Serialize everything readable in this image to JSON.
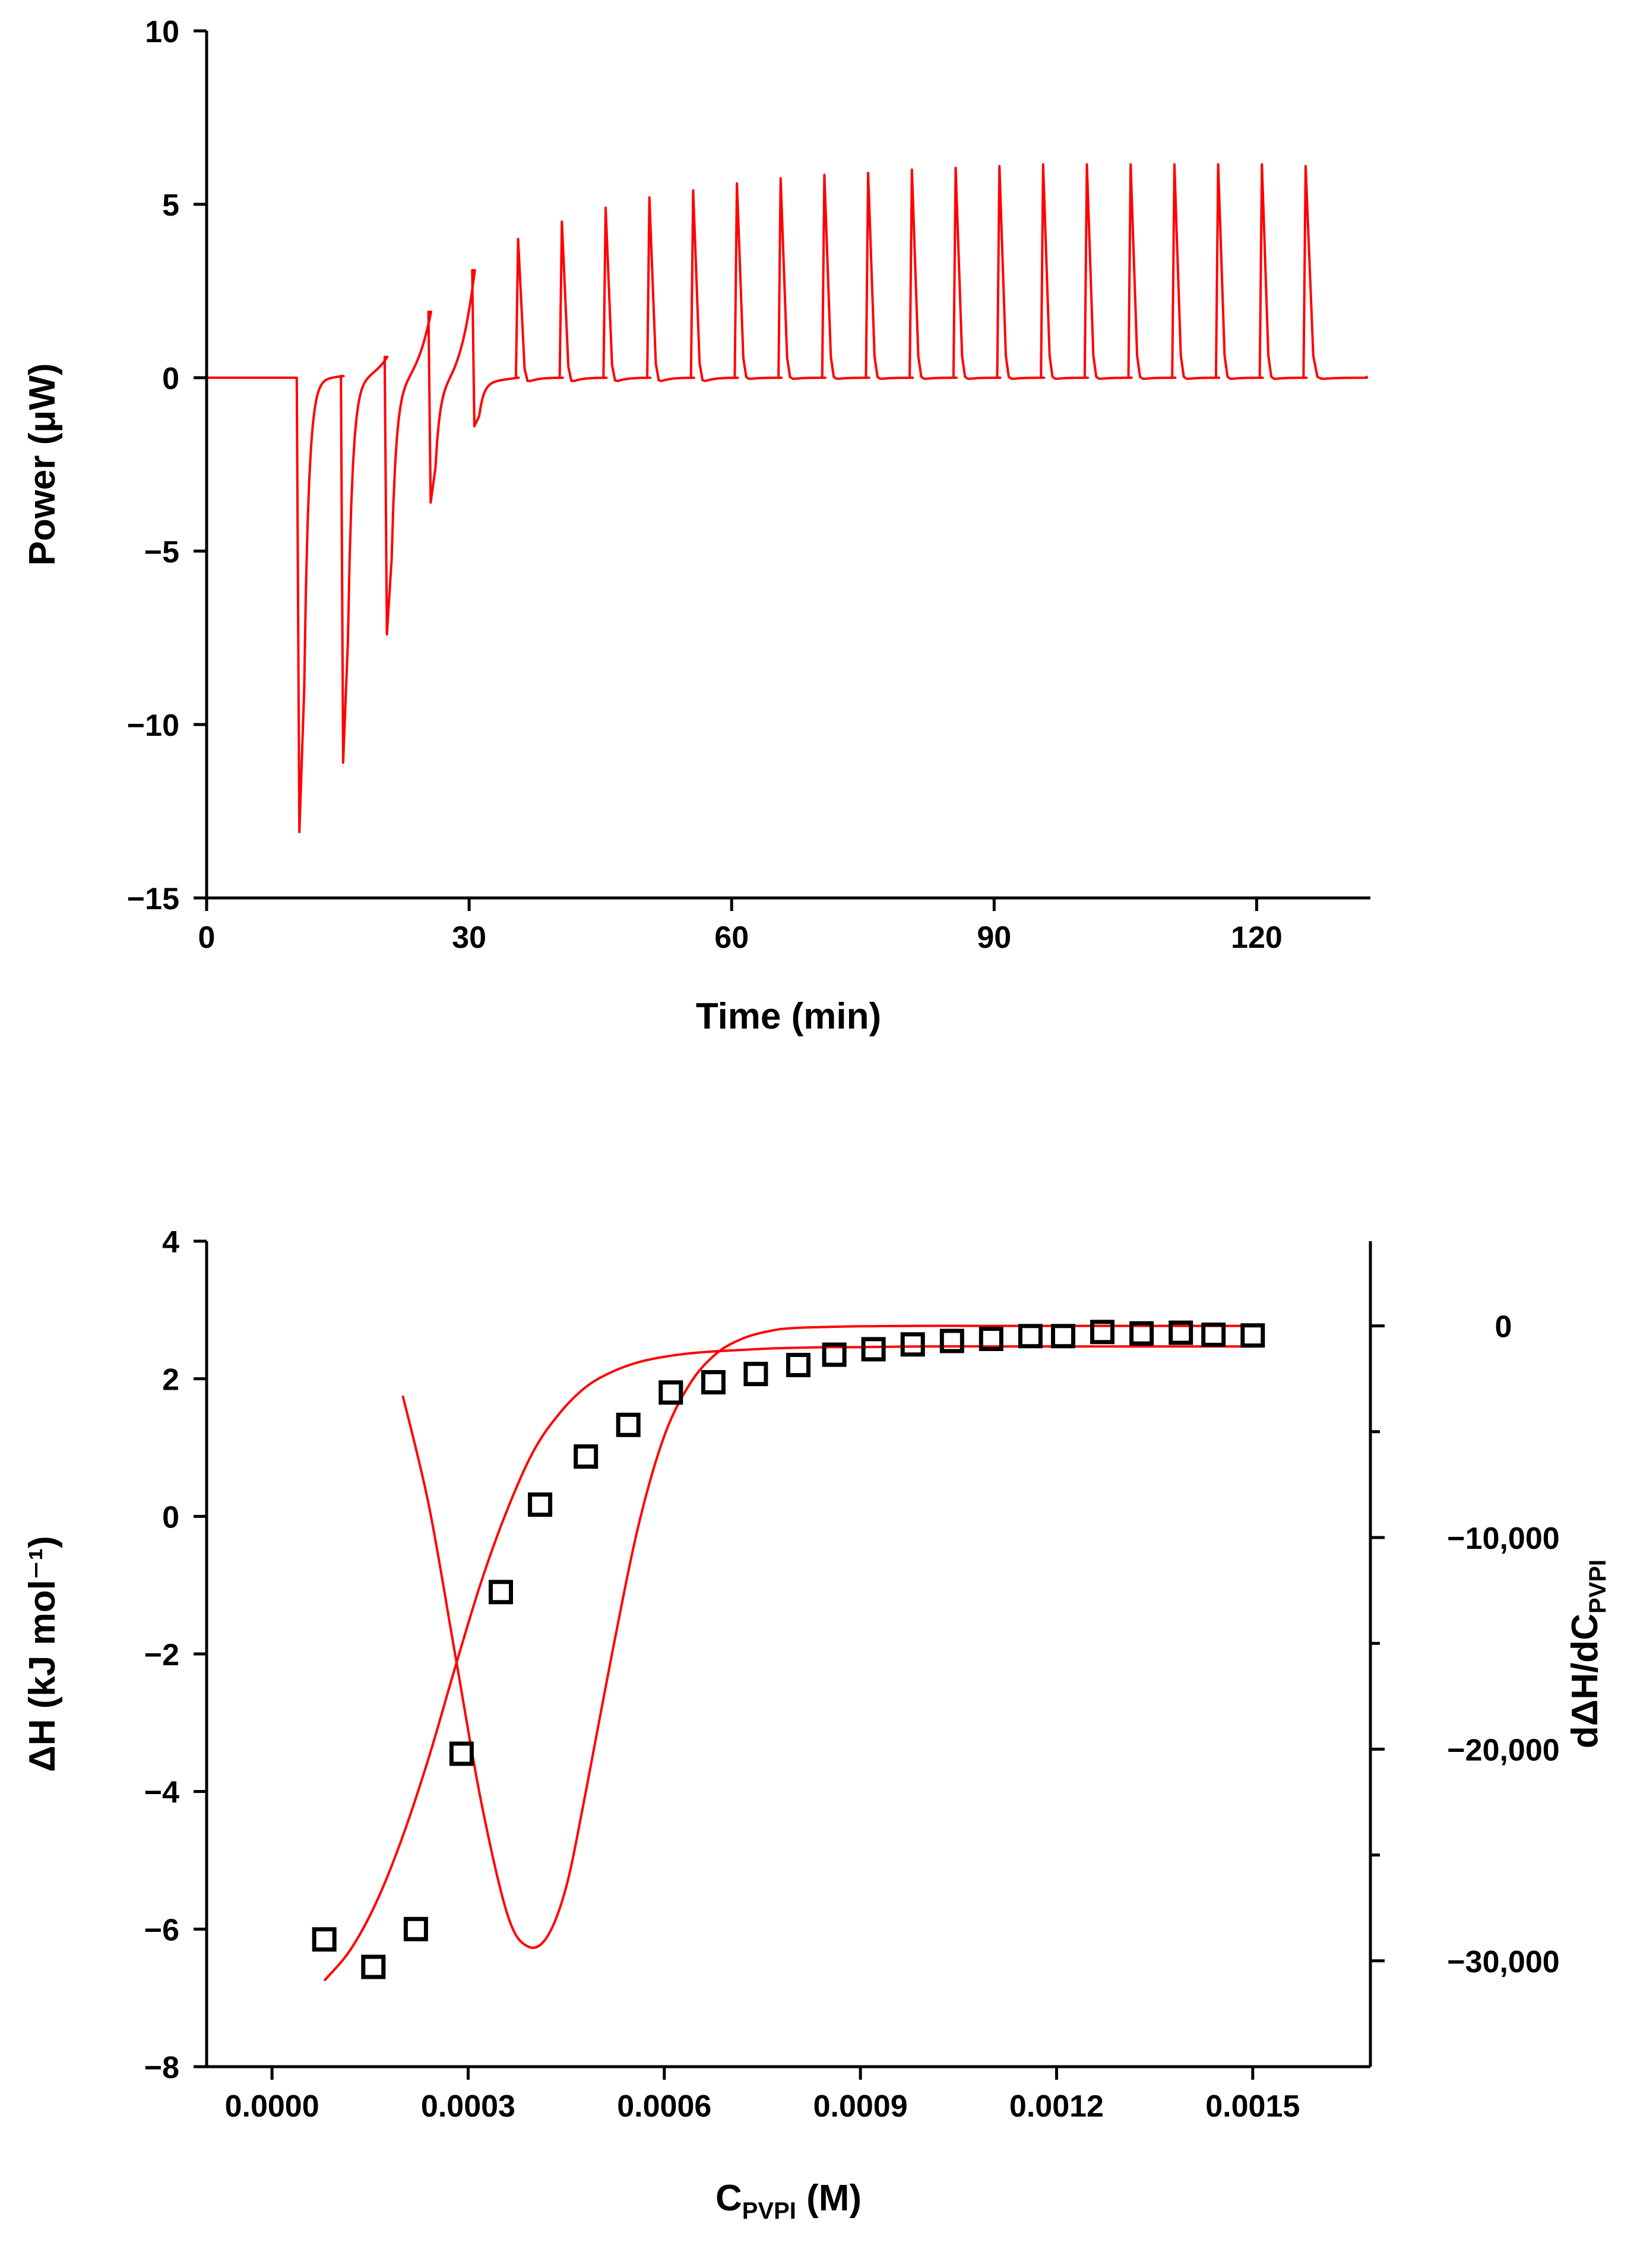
{
  "colors": {
    "curve": "#ff0000",
    "axis": "#000000",
    "marker": "#000000",
    "background": "#ffffff"
  },
  "chart_data": [
    {
      "id": "thermogram",
      "type": "line",
      "title": "",
      "xlabel": "Time (min)",
      "ylabel": "Power (μW)",
      "xlim": [
        0,
        133
      ],
      "ylim": [
        -15,
        10
      ],
      "xticks": [
        0,
        30,
        60,
        90,
        120
      ],
      "xtick_labels": [
        "0",
        "30",
        "60",
        "90",
        "120"
      ],
      "yticks": [
        10,
        5,
        0,
        -5,
        -10,
        -15
      ],
      "ytick_labels": [
        "10",
        "5",
        "0",
        "−5",
        "−10",
        "−15"
      ],
      "grid": false,
      "baseline": 0,
      "injections": [
        {
          "t": 10.6,
          "peak": -13.1,
          "pre": 0.0
        },
        {
          "t": 15.6,
          "peak": -11.1,
          "pre": 0.05
        },
        {
          "t": 20.6,
          "peak": -7.4,
          "pre": 0.6
        },
        {
          "t": 25.6,
          "peak": -3.6,
          "pre": 1.9
        },
        {
          "t": 30.6,
          "peak": -1.4,
          "pre": 3.1
        },
        {
          "t": 35.6,
          "peak": 4.0,
          "pre": 0
        },
        {
          "t": 40.6,
          "peak": 4.5,
          "pre": 0
        },
        {
          "t": 45.6,
          "peak": 4.9,
          "pre": 0
        },
        {
          "t": 50.6,
          "peak": 5.2,
          "pre": 0
        },
        {
          "t": 55.6,
          "peak": 5.4,
          "pre": 0
        },
        {
          "t": 60.6,
          "peak": 5.6,
          "pre": 0
        },
        {
          "t": 65.6,
          "peak": 5.75,
          "pre": 0
        },
        {
          "t": 70.6,
          "peak": 5.85,
          "pre": 0
        },
        {
          "t": 75.6,
          "peak": 5.9,
          "pre": 0
        },
        {
          "t": 80.6,
          "peak": 6.0,
          "pre": 0
        },
        {
          "t": 85.6,
          "peak": 6.05,
          "pre": 0
        },
        {
          "t": 90.6,
          "peak": 6.1,
          "pre": 0
        },
        {
          "t": 95.6,
          "peak": 6.15,
          "pre": 0
        },
        {
          "t": 100.6,
          "peak": 6.15,
          "pre": 0
        },
        {
          "t": 105.6,
          "peak": 6.15,
          "pre": 0
        },
        {
          "t": 110.6,
          "peak": 6.15,
          "pre": 0
        },
        {
          "t": 115.6,
          "peak": 6.15,
          "pre": 0
        },
        {
          "t": 120.6,
          "peak": 6.15,
          "pre": 0
        },
        {
          "t": 125.6,
          "peak": 6.1,
          "pre": 0
        }
      ],
      "end_time": 132.5
    },
    {
      "id": "binding-isotherm",
      "type": "scatter",
      "title": "",
      "xlabel": "C",
      "xlabel_sub": "PVPI",
      "xlabel_suffix": " (M)",
      "ylabel": "ΔH (kJ mol⁻¹)",
      "y2label": "dΔH/dC",
      "y2label_sub": "PVPI",
      "xlim": [
        -0.0001,
        0.00168
      ],
      "ylim": [
        -8,
        4
      ],
      "y2lim": [
        -35000,
        4000
      ],
      "xticks": [
        0,
        0.0003,
        0.0006,
        0.0009,
        0.0012,
        0.0015
      ],
      "xtick_labels": [
        "0.0000",
        "0.0003",
        "0.0006",
        "0.0009",
        "0.0012",
        "0.0015"
      ],
      "yticks": [
        4,
        2,
        0,
        -2,
        -4,
        -6,
        -8
      ],
      "ytick_labels": [
        "4",
        "2",
        "0",
        "−2",
        "−4",
        "−6",
        "−8"
      ],
      "y2ticks": [
        0,
        -10000,
        -20000,
        -30000
      ],
      "y2tick_labels": [
        "0",
        "−10,000",
        "−20,000",
        "−30,000"
      ],
      "y2minor_ticks": [
        -5000,
        -15000,
        -25000
      ],
      "grid": false,
      "series": [
        {
          "name": "experimental ΔH",
          "marker": "open-square",
          "x": [
            8e-05,
            0.000155,
            0.00022,
            0.00029,
            0.00035,
            0.00041,
            0.00048,
            0.000545,
            0.00061,
            0.000675,
            0.00074,
            0.000805,
            0.00086,
            0.00092,
            0.00098,
            0.00104,
            0.0011,
            0.00116,
            0.00121,
            0.00127,
            0.00133,
            0.00139,
            0.00144,
            0.0015
          ],
          "y": [
            -6.15,
            -6.55,
            -6.0,
            -3.45,
            -1.1,
            0.17,
            0.87,
            1.33,
            1.8,
            1.95,
            2.07,
            2.2,
            2.35,
            2.43,
            2.5,
            2.55,
            2.58,
            2.62,
            2.62,
            2.68,
            2.66,
            2.67,
            2.64,
            2.63
          ]
        },
        {
          "name": "sigmoidal fit",
          "axis": "left",
          "x": [
            8e-05,
            0.00012,
            0.00016,
            0.0002,
            0.00024,
            0.00028,
            0.00032,
            0.00036,
            0.0004,
            0.00044,
            0.00048,
            0.00052,
            0.00056,
            0.0006,
            0.00064,
            0.00068,
            0.00072,
            0.00076,
            0.0008,
            0.00085,
            0.0009,
            0.001,
            0.0011,
            0.0012,
            0.0013,
            0.0014,
            0.0015
          ],
          "y": [
            -6.75,
            -6.3,
            -5.6,
            -4.65,
            -3.5,
            -2.2,
            -0.95,
            0.1,
            0.95,
            1.5,
            1.88,
            2.1,
            2.24,
            2.32,
            2.37,
            2.4,
            2.42,
            2.44,
            2.45,
            2.46,
            2.46,
            2.47,
            2.47,
            2.47,
            2.47,
            2.47,
            2.47
          ]
        },
        {
          "name": "derivative dΔH/dC",
          "axis": "right",
          "x": [
            0.0002,
            0.00024,
            0.00028,
            0.00032,
            0.00036,
            0.00039,
            0.00042,
            0.00045,
            0.00048,
            0.00052,
            0.00056,
            0.0006,
            0.00064,
            0.00068,
            0.00072,
            0.00076,
            0.0008,
            0.0009,
            0.001,
            0.0011,
            0.0012,
            0.0013,
            0.0014,
            0.0015
          ],
          "y": [
            -3300,
            -8500,
            -15500,
            -22500,
            -27800,
            -29300,
            -28900,
            -26500,
            -22000,
            -15500,
            -9500,
            -5200,
            -2700,
            -1300,
            -600,
            -250,
            -100,
            -20,
            0,
            0,
            0,
            0,
            0,
            0
          ]
        }
      ]
    }
  ]
}
